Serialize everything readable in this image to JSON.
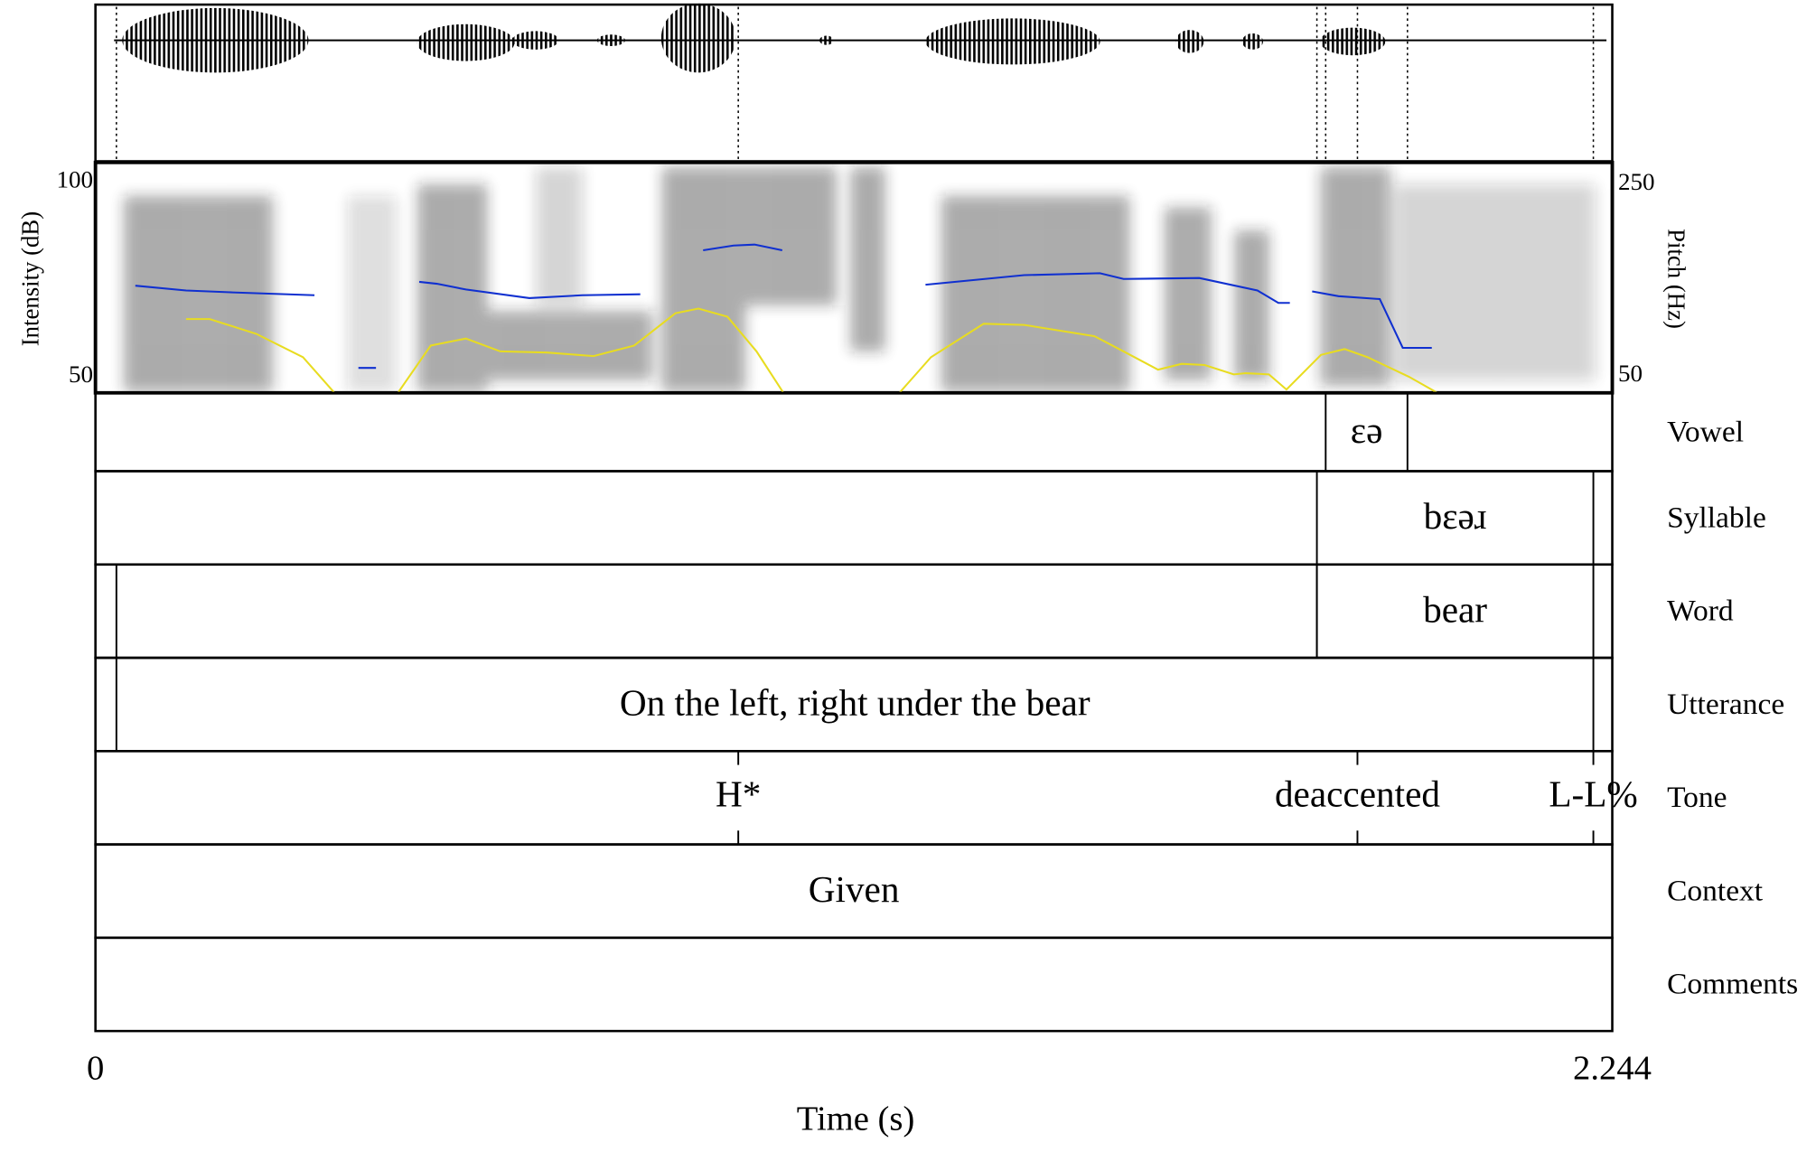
{
  "time_axis": {
    "label": "Time (s)",
    "start": 0,
    "end": 2.244
  },
  "intensity_axis": {
    "label": "Intensity (dB)",
    "ticks": [
      50,
      100
    ]
  },
  "pitch_axis": {
    "label": "Pitch (Hz)",
    "ticks": [
      50,
      250
    ]
  },
  "pitch": {
    "x": [
      0.059,
      0.134,
      0.203,
      0.324,
      null,
      0.389,
      0.415,
      null,
      0.479,
      0.505,
      0.548,
      0.642,
      0.72,
      0.806,
      null,
      0.899,
      0.944,
      0.975,
      1.016,
      null,
      1.228,
      1.374,
      1.486,
      1.521,
      1.633,
      1.719,
      1.75,
      1.767,
      null,
      1.8,
      1.839,
      1.9,
      1.934,
      1.977
    ],
    "values": [
      144,
      139,
      137,
      134,
      null,
      58,
      58,
      null,
      148,
      146,
      140,
      131,
      134,
      135,
      null,
      181,
      186,
      187,
      181,
      null,
      145,
      155,
      157,
      151,
      152,
      139,
      126,
      126,
      null,
      138,
      133,
      130,
      79,
      79
    ]
  },
  "intensity": {
    "x": [
      0.134,
      0.169,
      0.238,
      0.307,
      0.358,
      0.444,
      0.496,
      0.548,
      0.599,
      0.668,
      0.737,
      0.797,
      0.858,
      0.892,
      0.935,
      0.978,
      1.021,
      1.185,
      1.236,
      1.314,
      1.374,
      1.478,
      1.521,
      1.572,
      1.607,
      1.641,
      1.684,
      1.702,
      1.736,
      1.762,
      1.813,
      1.848,
      1.882,
      1.943,
      1.994,
      2.115
    ],
    "values": [
      64.8,
      64.8,
      61,
      55,
      45,
      45,
      58,
      59.8,
      56.5,
      56.2,
      55.3,
      58,
      66.3,
      67.5,
      65.4,
      56.5,
      45,
      45,
      55,
      63.6,
      63.3,
      60.4,
      56.5,
      51.8,
      53.3,
      53,
      50.6,
      50.9,
      50.6,
      46.7,
      55.6,
      57.1,
      55,
      50,
      45,
      45
    ]
  },
  "tiers": [
    {
      "name": "Vowel",
      "intervals": [
        {
          "text": "ɛə",
          "start": 1.82,
          "end": 1.941
        }
      ]
    },
    {
      "name": "Syllable",
      "intervals": [
        {
          "text": "bɛəɹ",
          "start": 1.807,
          "end": 2.216
        }
      ]
    },
    {
      "name": "Word",
      "intervals": [
        {
          "text": "bear",
          "start": 1.807,
          "end": 2.216
        },
        {
          "start": 0.031,
          "end": 1.807
        }
      ]
    },
    {
      "name": "Utterance",
      "intervals": [
        {
          "text": "On the left, right under the bear",
          "start": 0.031,
          "end": 2.216
        }
      ]
    },
    {
      "name": "Tone",
      "points": [
        {
          "text": "H*",
          "time": 0.951
        },
        {
          "text": "deaccented",
          "time": 1.867
        },
        {
          "text": "L-L%",
          "time": 2.216
        }
      ]
    },
    {
      "name": "Context",
      "intervals": [
        {
          "text": "Given"
        }
      ]
    },
    {
      "name": "Comments"
    }
  ]
}
